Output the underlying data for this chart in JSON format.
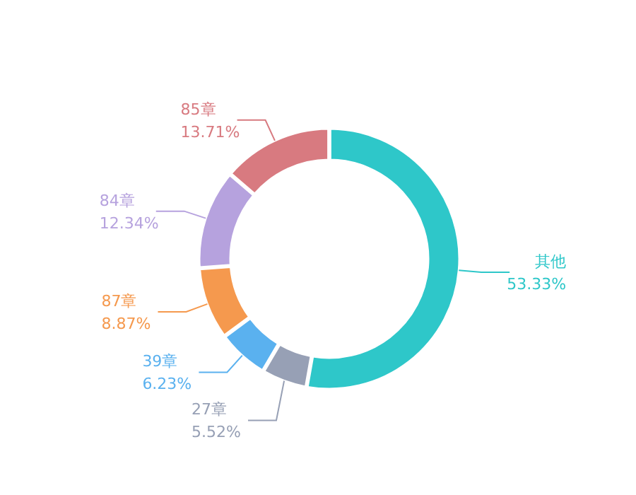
{
  "chart_data": {
    "type": "donut",
    "categories": [
      "其他",
      "27章",
      "39章",
      "87章",
      "84章",
      "85章"
    ],
    "values": [
      53.33,
      5.52,
      6.23,
      8.87,
      12.34,
      13.71
    ],
    "value_labels": [
      "53.33%",
      "5.52%",
      "6.23%",
      "8.87%",
      "12.34%",
      "13.71%"
    ],
    "colors": [
      "#2ec7c9",
      "#97a0b5",
      "#5ab1ef",
      "#f5994e",
      "#b6a2de",
      "#d87a80"
    ]
  }
}
